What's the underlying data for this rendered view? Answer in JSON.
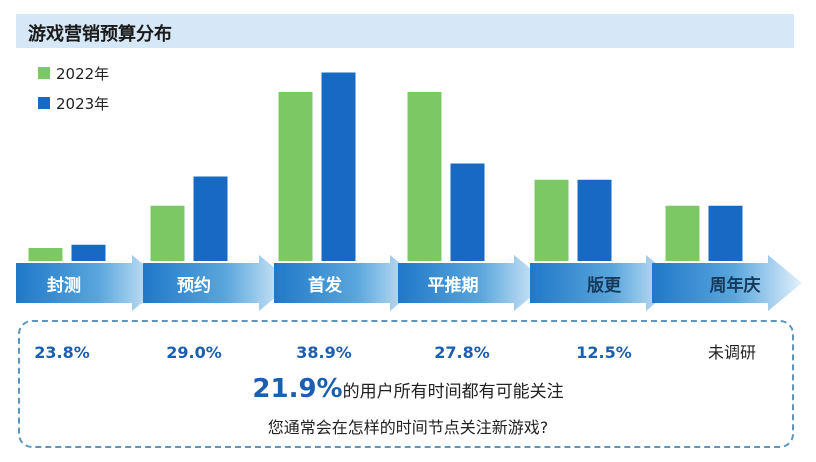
{
  "title": "游戏营销预算分布",
  "colors": {
    "y2022": "#7cc864",
    "y2023": "#1769c4",
    "arrow_dark": "#1f78c8",
    "arrow_light": "#e4f1fb",
    "pct": "#1b5fb0"
  },
  "chart_data": {
    "type": "bar",
    "title": "游戏营销预算分布",
    "legend_position": "top-left",
    "categories": [
      "封测",
      "预约",
      "首发",
      "平推期",
      "版更",
      "周年庆"
    ],
    "series": [
      {
        "name": "2022年",
        "values": [
          2,
          8.5,
          26,
          26,
          12.5,
          8.5
        ]
      },
      {
        "name": "2023年",
        "values": [
          2.5,
          13,
          29,
          15,
          12.5,
          8.5
        ]
      }
    ],
    "ylim": [
      0,
      30
    ],
    "shares": [
      "23.8%",
      "29.0%",
      "38.9%",
      "27.8%",
      "12.5%",
      "未调研"
    ]
  },
  "footer": {
    "highlight": "21.9%",
    "line1": "的用户所有时间都有可能关注",
    "line2": "您通常会在怎样的时间节点关注新游戏?"
  }
}
